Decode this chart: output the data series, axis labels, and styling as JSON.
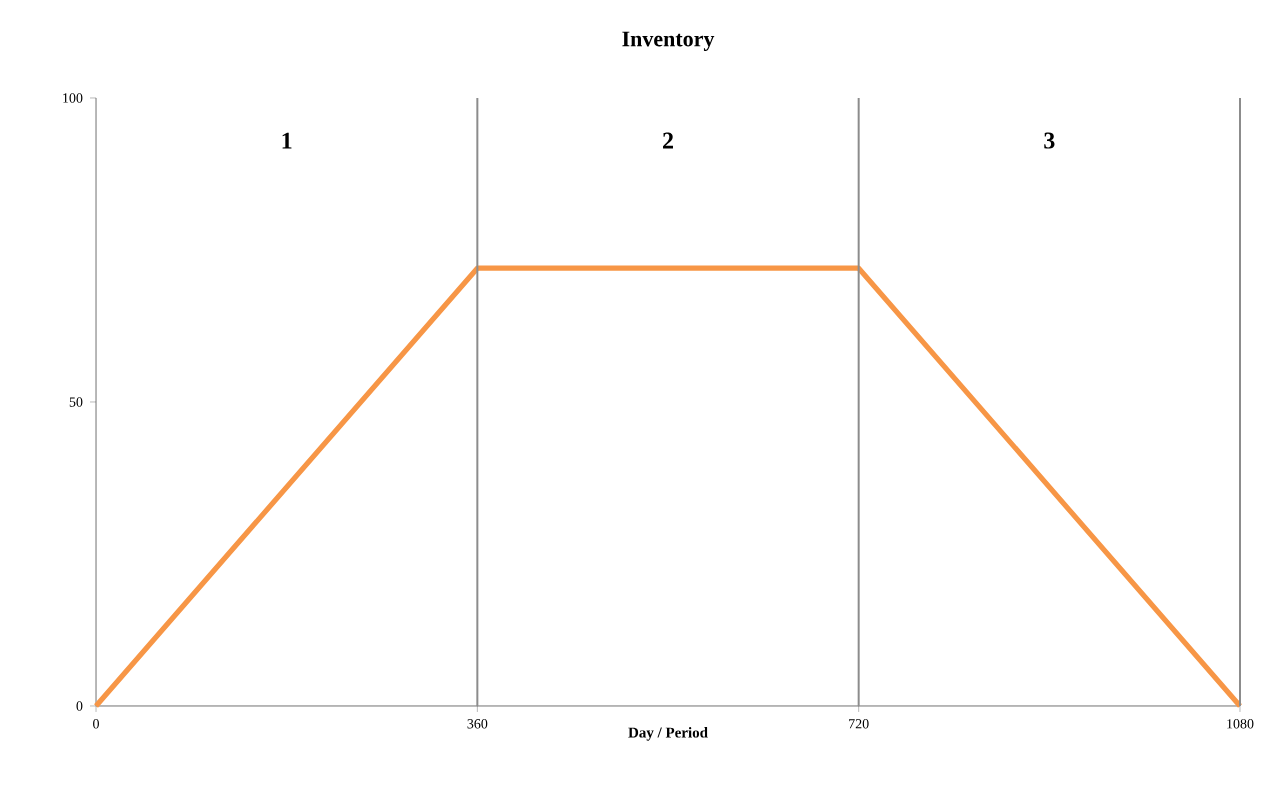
{
  "chart_data": {
    "type": "line",
    "title": "Inventory",
    "xlabel": "Day / Period",
    "x": [
      0,
      360,
      720,
      1080
    ],
    "series": [
      {
        "color": "#f79646",
        "values": [
          0,
          72,
          72,
          0
        ]
      }
    ],
    "xlim": [
      0,
      1080
    ],
    "ylim": [
      0,
      100
    ],
    "xticks": [
      0,
      360,
      720,
      1080
    ],
    "yticks": [
      0,
      50,
      100
    ],
    "marker": "none",
    "line_style": "solid",
    "ref_lines": [
      {
        "axis": "x",
        "value": 360,
        "color": "#8c8c8c"
      },
      {
        "axis": "x",
        "value": 720,
        "color": "#8c8c8c"
      }
    ],
    "annotations": [
      "1",
      "2",
      "3"
    ]
  }
}
